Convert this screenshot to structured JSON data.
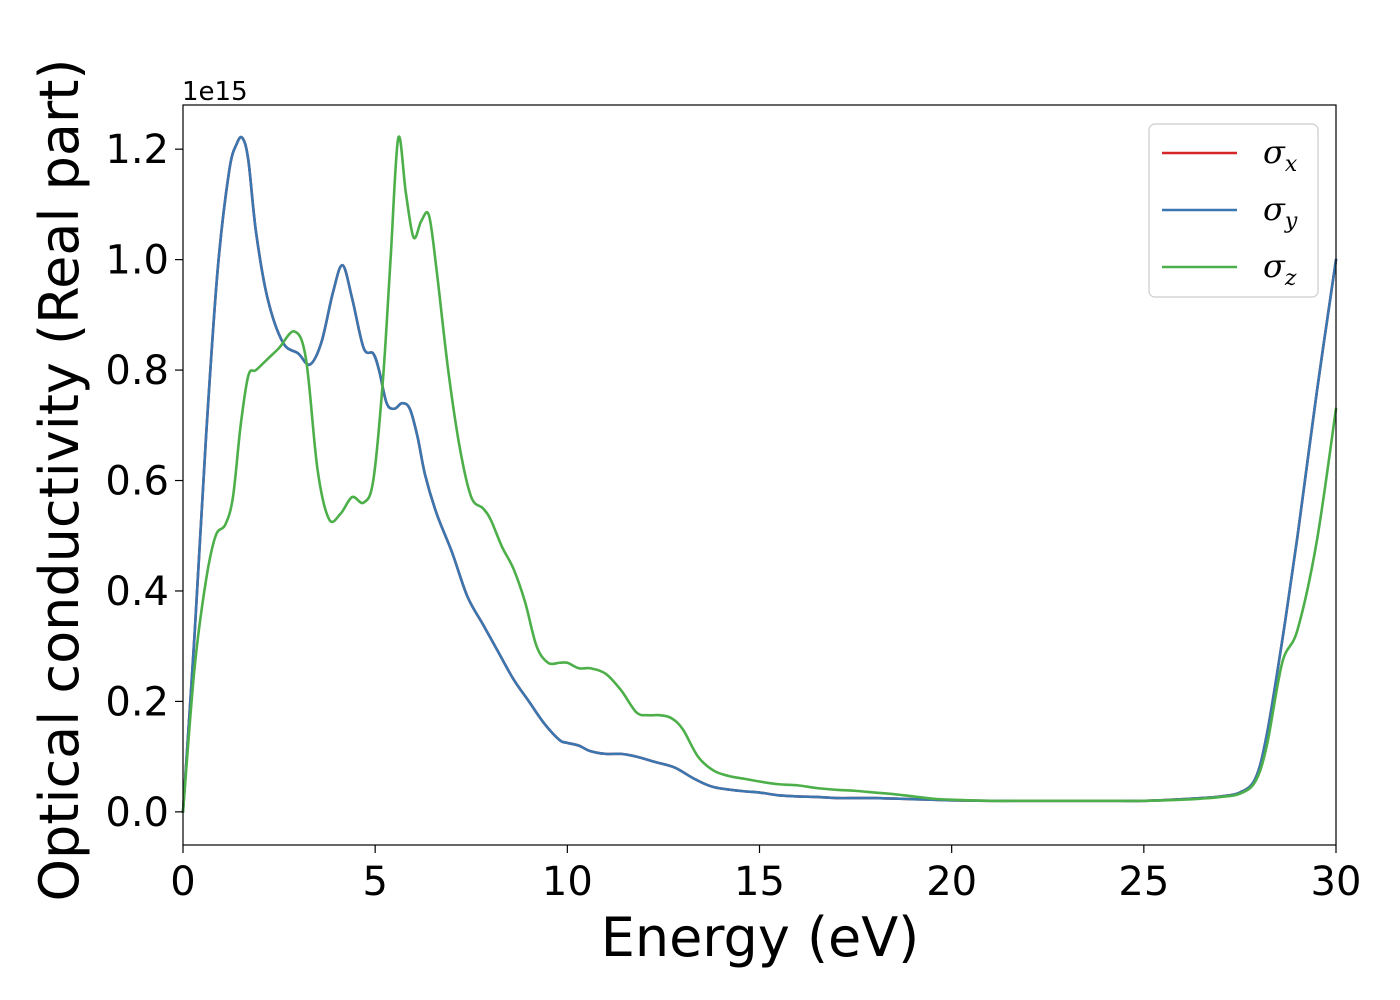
{
  "chart_data": {
    "type": "line",
    "title": "",
    "xlabel": "Energy (eV)",
    "ylabel": "Optical conductivity (Real part)",
    "y_offset_label": "1e15",
    "xlim": [
      0,
      30
    ],
    "ylim": [
      -0.06,
      1.28
    ],
    "x_ticks": [
      0,
      5,
      10,
      15,
      20,
      25,
      30
    ],
    "x_tick_labels": [
      "0",
      "5",
      "10",
      "15",
      "20",
      "25",
      "30"
    ],
    "y_ticks": [
      0.0,
      0.2,
      0.4,
      0.6,
      0.8,
      1.0,
      1.2
    ],
    "y_tick_labels": [
      "0.0",
      "0.2",
      "0.4",
      "0.6",
      "0.8",
      "1.0",
      "1.2"
    ],
    "grid": false,
    "legend_position": "top-right",
    "series": [
      {
        "name": "σx",
        "symbol": "σ",
        "subscript": "x",
        "color": "#d62728",
        "x": [
          0,
          0.3,
          0.6,
          0.9,
          1.2,
          1.4,
          1.55,
          1.7,
          1.9,
          2.2,
          2.6,
          3.0,
          3.3,
          3.6,
          3.9,
          4.15,
          4.4,
          4.7,
          4.95,
          5.1,
          5.3,
          5.5,
          5.7,
          5.9,
          6.1,
          6.3,
          6.6,
          7.0,
          7.4,
          7.8,
          8.2,
          8.6,
          9.0,
          9.4,
          9.8,
          10.0,
          10.3,
          10.6,
          11.0,
          11.4,
          11.8,
          12.3,
          12.8,
          13.3,
          13.8,
          14.5,
          15.0,
          15.5,
          16.0,
          16.5,
          17.0,
          17.5,
          18.0,
          18.5,
          19.0,
          19.5,
          20.0,
          21.0,
          22.0,
          23.0,
          24.0,
          25.0,
          26.0,
          26.5,
          27.0,
          27.5,
          27.9,
          28.2,
          28.6,
          29.0,
          29.5,
          30.0
        ],
        "y": [
          0.0,
          0.32,
          0.68,
          0.98,
          1.16,
          1.21,
          1.22,
          1.18,
          1.05,
          0.93,
          0.85,
          0.83,
          0.81,
          0.85,
          0.94,
          0.99,
          0.93,
          0.84,
          0.83,
          0.8,
          0.74,
          0.73,
          0.74,
          0.73,
          0.68,
          0.61,
          0.54,
          0.47,
          0.39,
          0.34,
          0.29,
          0.24,
          0.2,
          0.16,
          0.13,
          0.125,
          0.12,
          0.11,
          0.105,
          0.105,
          0.1,
          0.09,
          0.08,
          0.06,
          0.045,
          0.038,
          0.035,
          0.03,
          0.028,
          0.027,
          0.025,
          0.025,
          0.025,
          0.024,
          0.023,
          0.022,
          0.021,
          0.02,
          0.02,
          0.02,
          0.02,
          0.02,
          0.023,
          0.025,
          0.028,
          0.035,
          0.06,
          0.14,
          0.31,
          0.5,
          0.76,
          1.0
        ]
      },
      {
        "name": "σy",
        "symbol": "σ",
        "subscript": "y",
        "color": "#3a76af",
        "x": [
          0,
          0.3,
          0.6,
          0.9,
          1.2,
          1.4,
          1.55,
          1.7,
          1.9,
          2.2,
          2.6,
          3.0,
          3.3,
          3.6,
          3.9,
          4.15,
          4.4,
          4.7,
          4.95,
          5.1,
          5.3,
          5.5,
          5.7,
          5.9,
          6.1,
          6.3,
          6.6,
          7.0,
          7.4,
          7.8,
          8.2,
          8.6,
          9.0,
          9.4,
          9.8,
          10.0,
          10.3,
          10.6,
          11.0,
          11.4,
          11.8,
          12.3,
          12.8,
          13.3,
          13.8,
          14.5,
          15.0,
          15.5,
          16.0,
          16.5,
          17.0,
          17.5,
          18.0,
          18.5,
          19.0,
          19.5,
          20.0,
          21.0,
          22.0,
          23.0,
          24.0,
          25.0,
          26.0,
          26.5,
          27.0,
          27.5,
          27.9,
          28.2,
          28.6,
          29.0,
          29.5,
          30.0
        ],
        "y": [
          0.0,
          0.32,
          0.68,
          0.98,
          1.16,
          1.21,
          1.22,
          1.18,
          1.05,
          0.93,
          0.85,
          0.83,
          0.81,
          0.85,
          0.94,
          0.99,
          0.93,
          0.84,
          0.83,
          0.8,
          0.74,
          0.73,
          0.74,
          0.73,
          0.68,
          0.61,
          0.54,
          0.47,
          0.39,
          0.34,
          0.29,
          0.24,
          0.2,
          0.16,
          0.13,
          0.125,
          0.12,
          0.11,
          0.105,
          0.105,
          0.1,
          0.09,
          0.08,
          0.06,
          0.045,
          0.038,
          0.035,
          0.03,
          0.028,
          0.027,
          0.025,
          0.025,
          0.025,
          0.024,
          0.023,
          0.022,
          0.021,
          0.02,
          0.02,
          0.02,
          0.02,
          0.02,
          0.023,
          0.025,
          0.028,
          0.035,
          0.06,
          0.14,
          0.31,
          0.5,
          0.76,
          1.0
        ]
      },
      {
        "name": "σz",
        "symbol": "σ",
        "subscript": "z",
        "color": "#4daf4a",
        "x": [
          0,
          0.3,
          0.6,
          0.85,
          1.1,
          1.3,
          1.5,
          1.7,
          1.9,
          2.2,
          2.5,
          2.9,
          3.2,
          3.5,
          3.8,
          4.1,
          4.4,
          4.7,
          4.95,
          5.2,
          5.4,
          5.6,
          5.8,
          6.0,
          6.2,
          6.4,
          6.6,
          6.9,
          7.2,
          7.5,
          7.8,
          8.0,
          8.3,
          8.6,
          8.9,
          9.2,
          9.5,
          9.8,
          10.0,
          10.3,
          10.6,
          11.0,
          11.4,
          11.8,
          12.1,
          12.4,
          12.7,
          13.0,
          13.4,
          13.8,
          14.2,
          14.6,
          15.0,
          15.5,
          16.0,
          16.5,
          17.0,
          17.5,
          18.0,
          18.5,
          19.0,
          19.5,
          20.0,
          21.0,
          22.0,
          23.0,
          24.0,
          25.0,
          26.0,
          26.5,
          27.0,
          27.5,
          27.9,
          28.2,
          28.6,
          29.0,
          29.5,
          30.0
        ],
        "y": [
          0.0,
          0.26,
          0.42,
          0.5,
          0.52,
          0.57,
          0.7,
          0.79,
          0.8,
          0.82,
          0.84,
          0.87,
          0.82,
          0.62,
          0.53,
          0.54,
          0.57,
          0.56,
          0.6,
          0.78,
          1.0,
          1.22,
          1.12,
          1.04,
          1.07,
          1.08,
          0.98,
          0.8,
          0.66,
          0.57,
          0.55,
          0.53,
          0.48,
          0.44,
          0.38,
          0.3,
          0.27,
          0.27,
          0.27,
          0.26,
          0.26,
          0.25,
          0.22,
          0.18,
          0.175,
          0.175,
          0.17,
          0.15,
          0.1,
          0.075,
          0.065,
          0.06,
          0.055,
          0.05,
          0.048,
          0.043,
          0.04,
          0.038,
          0.035,
          0.032,
          0.028,
          0.024,
          0.022,
          0.02,
          0.02,
          0.02,
          0.02,
          0.02,
          0.022,
          0.024,
          0.027,
          0.033,
          0.055,
          0.12,
          0.27,
          0.33,
          0.49,
          0.73
        ]
      }
    ]
  }
}
